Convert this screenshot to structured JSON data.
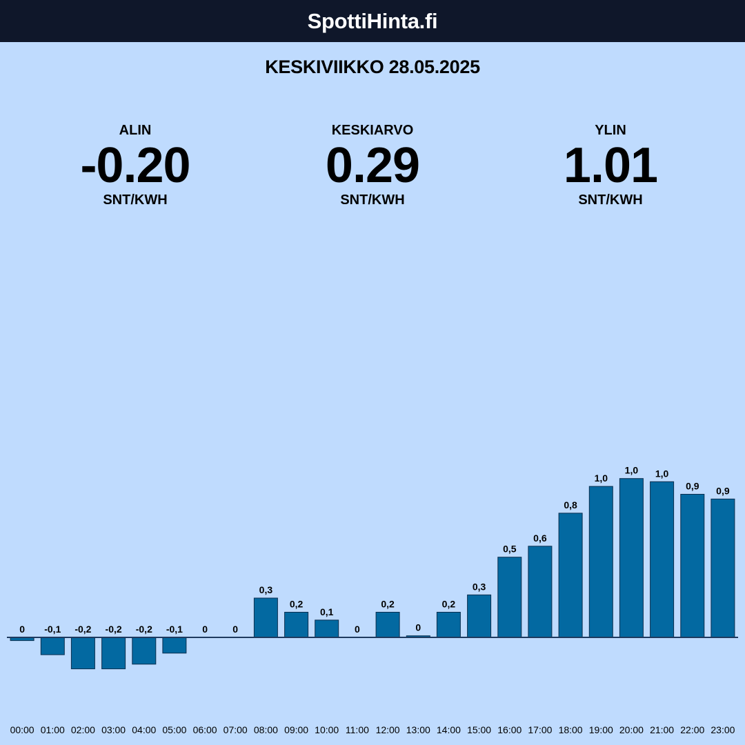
{
  "header": {
    "site_title": "SpottiHinta.fi"
  },
  "date_title": "KESKIVIIKKO 28.05.2025",
  "stats": {
    "min": {
      "label": "ALIN",
      "value": "-0.20",
      "unit": "SNT/KWH"
    },
    "avg": {
      "label": "KESKIARVO",
      "value": "0.29",
      "unit": "SNT/KWH"
    },
    "max": {
      "label": "YLIN",
      "value": "1.01",
      "unit": "SNT/KWH"
    }
  },
  "colors": {
    "background": "#bfdbfe",
    "header": "#0f172a",
    "bar": "#0369a1",
    "bar_stroke": "#0c2e4e",
    "baseline": "#1e3a5f"
  },
  "chart_data": {
    "type": "bar",
    "categories": [
      "00:00",
      "01:00",
      "02:00",
      "03:00",
      "04:00",
      "05:00",
      "06:00",
      "07:00",
      "08:00",
      "09:00",
      "10:00",
      "11:00",
      "12:00",
      "13:00",
      "14:00",
      "15:00",
      "16:00",
      "17:00",
      "18:00",
      "19:00",
      "20:00",
      "21:00",
      "22:00",
      "23:00"
    ],
    "values": [
      -0.02,
      -0.11,
      -0.2,
      -0.2,
      -0.17,
      -0.1,
      0.0,
      0.0,
      0.25,
      0.16,
      0.11,
      0.0,
      0.16,
      0.01,
      0.16,
      0.27,
      0.51,
      0.58,
      0.79,
      0.96,
      1.01,
      0.99,
      0.91,
      0.88
    ],
    "data_labels": [
      "0",
      "-0,1",
      "-0,2",
      "-0,2",
      "-0,2",
      "-0,1",
      "0",
      "0",
      "0,3",
      "0,2",
      "0,1",
      "0",
      "0,2",
      "0",
      "0,2",
      "0,3",
      "0,5",
      "0,6",
      "0,8",
      "1,0",
      "1,0",
      "1,0",
      "0,9",
      "0,9"
    ],
    "ylim": [
      -0.2,
      1.01
    ],
    "grid": false
  }
}
